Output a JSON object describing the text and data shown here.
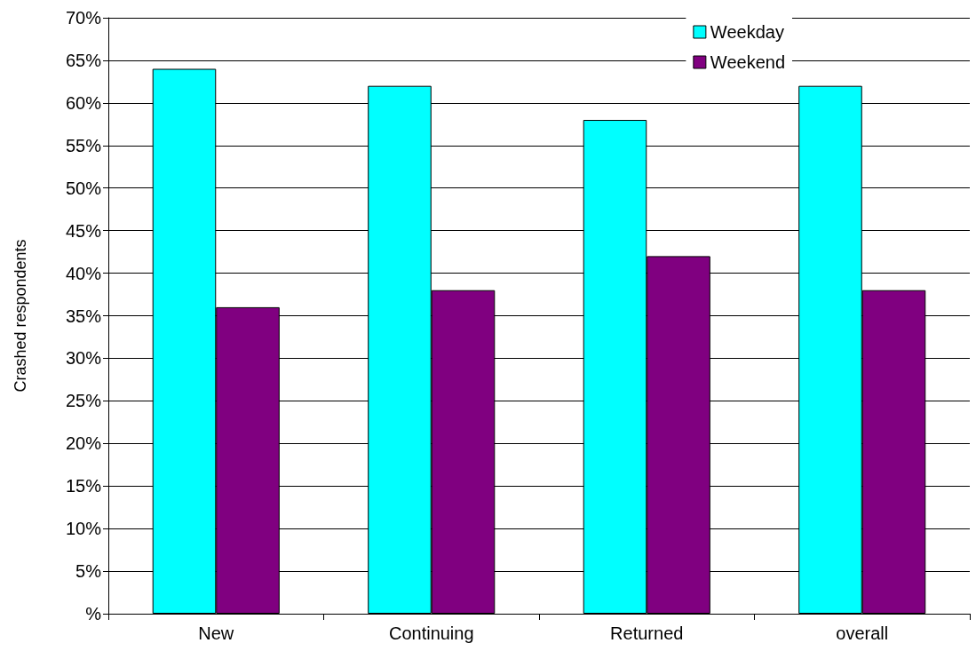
{
  "chart_data": {
    "type": "bar",
    "ylabel": "Crashed respondents",
    "categories": [
      "New",
      "Continuing",
      "Returned",
      "overall"
    ],
    "series": [
      {
        "name": "Weekday",
        "color": "#00ffff",
        "values": [
          64,
          62,
          58,
          62
        ]
      },
      {
        "name": "Weekend",
        "color": "#800080",
        "values": [
          36,
          38,
          42,
          38
        ]
      }
    ],
    "ylim": [
      0,
      70
    ],
    "yticks": [
      {
        "value": 0,
        "label": "%"
      },
      {
        "value": 5,
        "label": "5%"
      },
      {
        "value": 10,
        "label": "10%"
      },
      {
        "value": 15,
        "label": "15%"
      },
      {
        "value": 20,
        "label": "20%"
      },
      {
        "value": 25,
        "label": "25%"
      },
      {
        "value": 30,
        "label": "30%"
      },
      {
        "value": 35,
        "label": "35%"
      },
      {
        "value": 40,
        "label": "40%"
      },
      {
        "value": 45,
        "label": "45%"
      },
      {
        "value": 50,
        "label": "50%"
      },
      {
        "value": 55,
        "label": "55%"
      },
      {
        "value": 60,
        "label": "60%"
      },
      {
        "value": 65,
        "label": "65%"
      },
      {
        "value": 70,
        "label": "70%"
      }
    ],
    "grid": "y",
    "legend": "top right"
  }
}
